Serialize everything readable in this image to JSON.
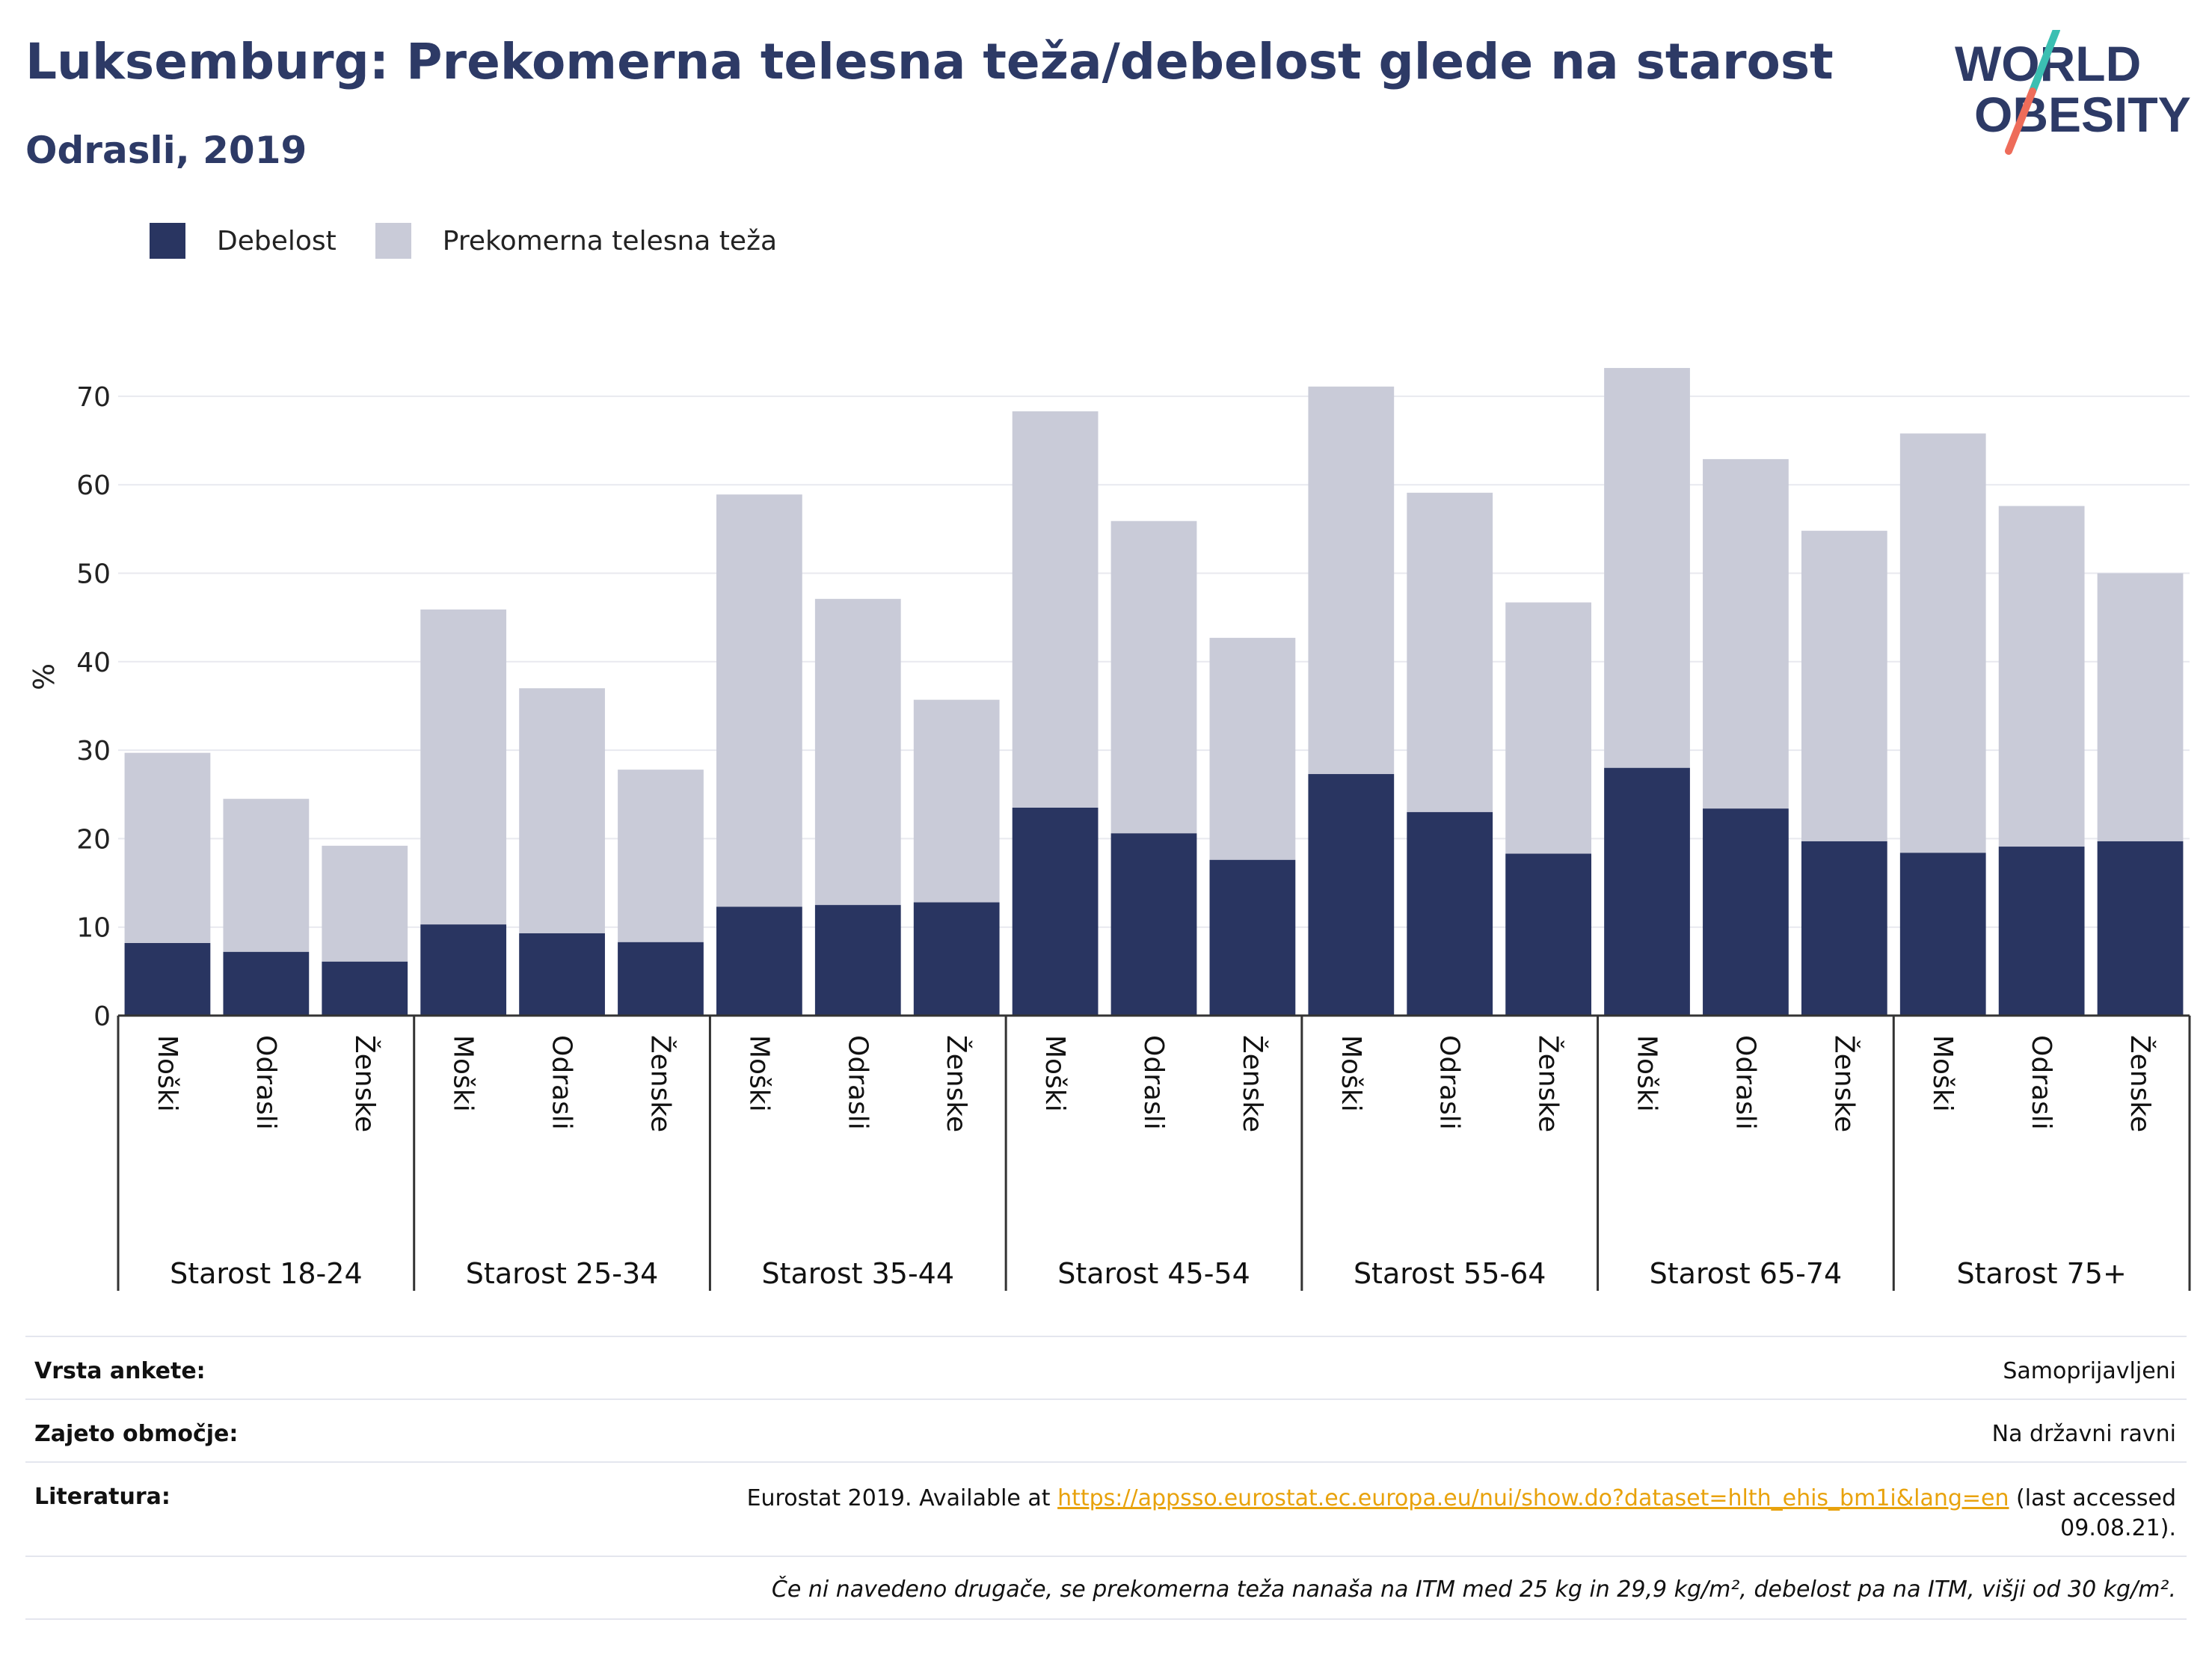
{
  "title": "Luksemburg: Prekomerna telesna teža/debelost glede na starost",
  "subtitle": "Odrasli, 2019",
  "logo": {
    "line1": "WORLD",
    "line2": "OBESITY"
  },
  "colors": {
    "obesity": "#293561",
    "overweight": "#c9cbd8",
    "text": "#2d3a66",
    "link": "#e8a20c",
    "logo_slash_teal": "#3bbfb2",
    "logo_slash_coral": "#ee6c5a"
  },
  "legend": [
    {
      "label": "Debelost",
      "color": "#293561"
    },
    {
      "label": "Prekomerna telesna teža",
      "color": "#c9cbd8"
    }
  ],
  "chart_data": {
    "type": "bar",
    "stacked": true,
    "ylabel": "%",
    "ylim": [
      0,
      75
    ],
    "yticks": [
      0,
      10,
      20,
      30,
      40,
      50,
      60,
      70
    ],
    "grid": true,
    "legend_position": "top-left",
    "groups": [
      "Starost 18-24",
      "Starost 25-34",
      "Starost 35-44",
      "Starost 45-54",
      "Starost 55-64",
      "Starost 65-74",
      "Starost 75+"
    ],
    "subcategories": [
      "Moški",
      "Odrasli",
      "Ženske"
    ],
    "series": [
      {
        "name": "Debelost",
        "values": [
          8.2,
          7.2,
          6.1,
          10.3,
          9.3,
          8.3,
          12.3,
          12.5,
          12.8,
          23.5,
          20.6,
          17.6,
          27.3,
          23.0,
          18.3,
          28.0,
          23.4,
          19.7,
          18.4,
          19.1,
          19.7
        ]
      },
      {
        "name": "Prekomerna telesna teža",
        "values": [
          21.5,
          17.3,
          13.1,
          35.6,
          27.7,
          19.5,
          46.6,
          34.6,
          22.9,
          44.8,
          35.3,
          25.1,
          43.8,
          36.1,
          28.4,
          45.2,
          39.5,
          35.1,
          47.4,
          38.5,
          30.3
        ]
      }
    ]
  },
  "meta": {
    "survey_type_label": "Vrsta ankete:",
    "survey_type_value": "Samoprijavljeni",
    "coverage_label": "Zajeto območje:",
    "coverage_value": "Na državni ravni",
    "references_label": "Literatura:",
    "references_prefix": "Eurostat 2019. Available at ",
    "references_link": "https://appsso.eurostat.ec.europa.eu/nui/show.do?dataset=hlth_ehis_bm1i&lang=en",
    "references_suffix_1": " (last accessed",
    "references_suffix_2": "09.08.21).",
    "note": "Če ni navedeno drugače, se prekomerna teža nanaša na ITM med 25 kg in 29,9 kg/m², debelost pa na ITM, višji od 30 kg/m²."
  }
}
